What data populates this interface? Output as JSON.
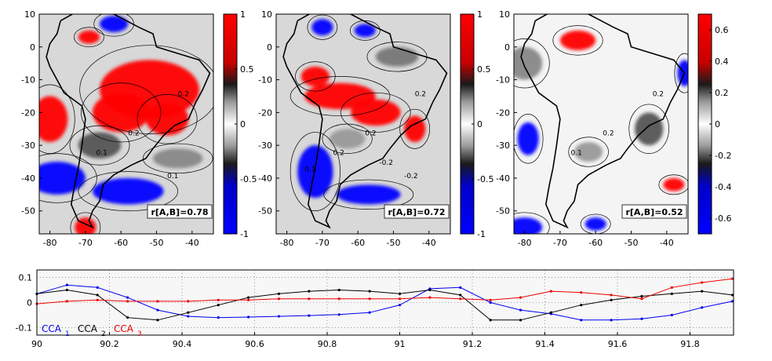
{
  "chart_data": [
    {
      "type": "heatmap",
      "panel": "A",
      "xticks": [
        -80,
        -70,
        -60,
        -50,
        -40
      ],
      "yticks": [
        10,
        0,
        -10,
        -20,
        -30,
        -40,
        -50
      ],
      "xlim": [
        -83,
        -34
      ],
      "ylim": [
        -57,
        10
      ],
      "colorbar_ticks": [
        "1",
        "0.5",
        "0",
        "-0.5",
        "-1"
      ],
      "colorbar_range": [
        -1,
        1
      ],
      "annotation": "r[A,B]=0.78",
      "contour_labels": [
        "0.2",
        "0.2",
        "0.1",
        "0.1"
      ]
    },
    {
      "type": "heatmap",
      "panel": "B",
      "xticks": [
        -80,
        -70,
        -60,
        -50,
        -40
      ],
      "yticks": [
        10,
        0,
        -10,
        -20,
        -30,
        -40,
        -50
      ],
      "xlim": [
        -83,
        -34
      ],
      "ylim": [
        -57,
        10
      ],
      "colorbar_ticks": [
        "1",
        "0.5",
        "0",
        "-0.5",
        "-1"
      ],
      "colorbar_range": [
        -1,
        1
      ],
      "annotation": "r[A,B]=0.72",
      "contour_labels": [
        "0.2",
        "0.2",
        "0.2",
        "-0.2",
        "-0.2",
        "0.1"
      ]
    },
    {
      "type": "heatmap",
      "panel": "C",
      "xticks": [
        -80,
        -70,
        -60,
        -50,
        -40
      ],
      "yticks": [
        10,
        0,
        -10,
        -20,
        -30,
        -40,
        -50
      ],
      "xlim": [
        -83,
        -34
      ],
      "ylim": [
        -57,
        10
      ],
      "colorbar_ticks": [
        "0.6",
        "0.4",
        "0.2",
        "0",
        "-0.2",
        "-0.4",
        "-0.6"
      ],
      "colorbar_range": [
        -0.7,
        0.7
      ],
      "annotation": "r[A,B]=0.52",
      "contour_labels": [
        "0.2",
        "0.2",
        "0.1"
      ]
    },
    {
      "type": "line",
      "xlim": [
        90,
        91.92
      ],
      "ylim": [
        -0.13,
        0.13
      ],
      "xticks": [
        "90",
        "90.2",
        "90.4",
        "90.6",
        "90.8",
        "91",
        "91.2",
        "91.4",
        "91.6",
        "91.8"
      ],
      "yticks": [
        "0.1",
        "0",
        "-0.1"
      ],
      "grid": true,
      "legend": "bottom-left",
      "series": [
        {
          "name": "CCA",
          "subscript": "1",
          "color": "#0000ee",
          "x": [
            90,
            90.083,
            90.167,
            90.25,
            90.333,
            90.417,
            90.5,
            90.583,
            90.667,
            90.75,
            90.833,
            90.917,
            91,
            91.083,
            91.167,
            91.25,
            91.333,
            91.417,
            91.5,
            91.583,
            91.667,
            91.75,
            91.833,
            91.917
          ],
          "y": [
            0.035,
            0.07,
            0.06,
            0.02,
            -0.03,
            -0.055,
            -0.06,
            -0.058,
            -0.055,
            -0.052,
            -0.048,
            -0.04,
            -0.01,
            0.055,
            0.06,
            0.0,
            -0.03,
            -0.045,
            -0.07,
            -0.07,
            -0.065,
            -0.05,
            -0.02,
            0.005
          ]
        },
        {
          "name": "CCA",
          "subscript": "2",
          "color": "#000000",
          "x": [
            90,
            90.083,
            90.167,
            90.25,
            90.333,
            90.417,
            90.5,
            90.583,
            90.667,
            90.75,
            90.833,
            90.917,
            91,
            91.083,
            91.167,
            91.25,
            91.333,
            91.417,
            91.5,
            91.583,
            91.667,
            91.75,
            91.833,
            91.917
          ],
          "y": [
            0.035,
            0.05,
            0.03,
            -0.06,
            -0.07,
            -0.04,
            -0.01,
            0.02,
            0.035,
            0.045,
            0.05,
            0.045,
            0.035,
            0.05,
            0.03,
            -0.07,
            -0.07,
            -0.04,
            -0.01,
            0.01,
            0.025,
            0.035,
            0.045,
            0.03
          ]
        },
        {
          "name": "CCA",
          "subscript": "3",
          "color": "#ee0000",
          "x": [
            90,
            90.083,
            90.167,
            90.25,
            90.333,
            90.417,
            90.5,
            90.583,
            90.667,
            90.75,
            90.833,
            90.917,
            91,
            91.083,
            91.167,
            91.25,
            91.333,
            91.417,
            91.5,
            91.583,
            91.667,
            91.75,
            91.833,
            91.917
          ],
          "y": [
            -0.005,
            0.005,
            0.01,
            0.005,
            0.005,
            0.005,
            0.01,
            0.01,
            0.015,
            0.015,
            0.015,
            0.015,
            0.015,
            0.02,
            0.015,
            0.01,
            0.02,
            0.045,
            0.04,
            0.03,
            0.015,
            0.06,
            0.08,
            0.095
          ]
        }
      ]
    }
  ]
}
